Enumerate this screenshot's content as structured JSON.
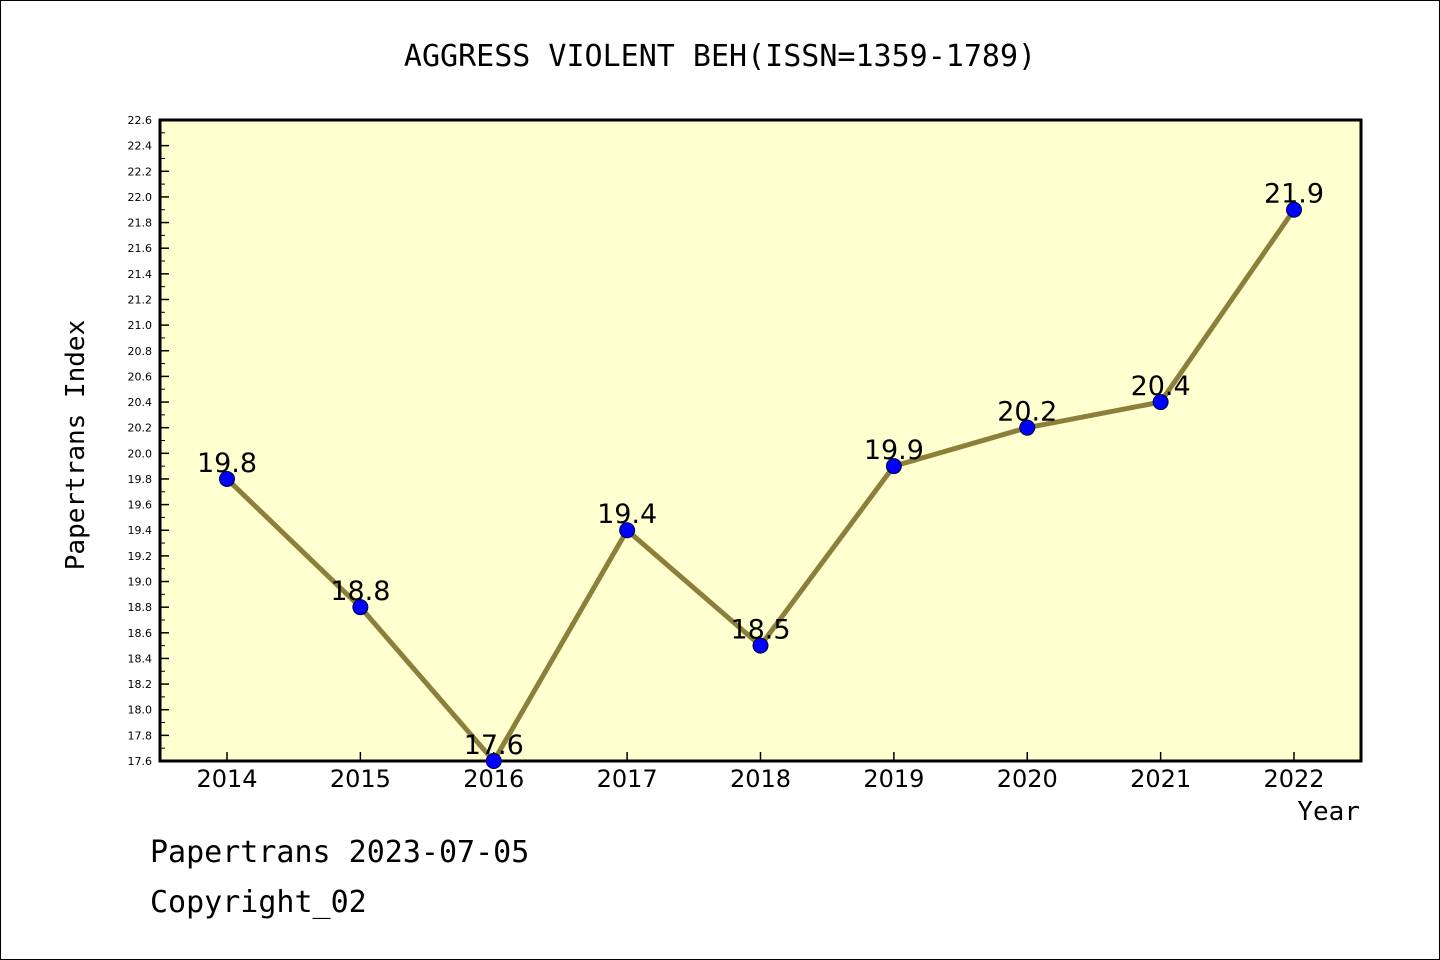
{
  "chart_data": {
    "type": "line",
    "title": "AGGRESS VIOLENT BEH(ISSN=1359-1789)",
    "xlabel": "Year",
    "ylabel": "Papertrans Index",
    "categories": [
      "2014",
      "2015",
      "2016",
      "2017",
      "2018",
      "2019",
      "2020",
      "2021",
      "2022"
    ],
    "series": [
      {
        "values": [
          19.8,
          18.8,
          17.6,
          19.4,
          18.5,
          19.9,
          20.2,
          20.4,
          21.9
        ],
        "data_labels": [
          "19.8",
          "18.8",
          "17.6",
          "19.4",
          "18.5",
          "19.9",
          "20.2",
          "20.4",
          "21.9"
        ]
      }
    ],
    "ylim": [
      17.6,
      22.6
    ],
    "yticks": [
      "17.6",
      "17.8",
      "18.0",
      "18.2",
      "18.4",
      "18.6",
      "18.8",
      "19.0",
      "19.2",
      "19.4",
      "19.6",
      "19.8",
      "20.0",
      "20.2",
      "20.4",
      "20.6",
      "20.8",
      "21.0",
      "21.2",
      "21.4",
      "21.6",
      "21.8",
      "22.0",
      "22.2",
      "22.4",
      "22.6"
    ],
    "grid": false,
    "legend": "none",
    "colors": {
      "plot_background": "#ffffd0",
      "line": "#8b7f3a",
      "marker": "#0000ff",
      "axis": "#000000"
    }
  },
  "footer": {
    "line1": "Papertrans 2023-07-05",
    "line2": "Copyright_02"
  }
}
